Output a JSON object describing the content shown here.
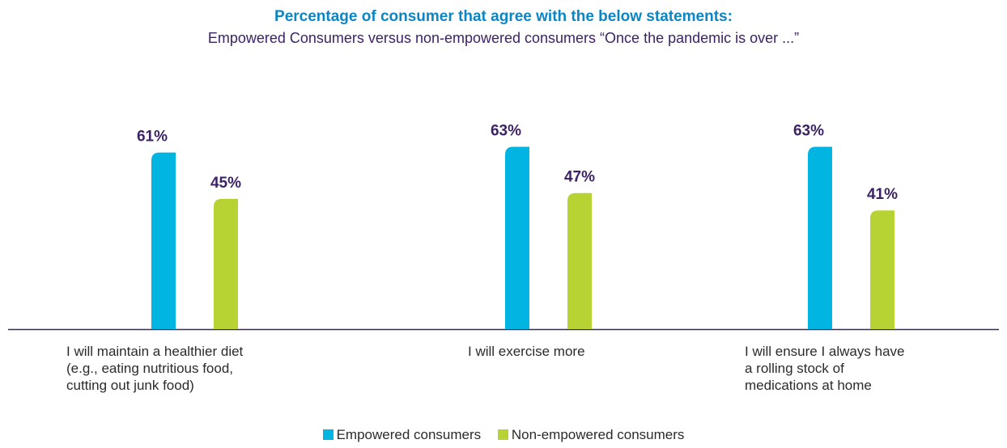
{
  "chart_data": {
    "type": "bar",
    "title": "Percentage of consumer that agree with the below statements:",
    "subtitle": "Empowered Consumers versus non-empowered consumers “Once the pandemic is over ...”",
    "categories": [
      [
        "I will maintain a healthier diet",
        "(e.g., eating nutritious food,",
        "cutting out junk food)"
      ],
      [
        "I will exercise more"
      ],
      [
        "I will ensure I always have",
        "a rolling stock of",
        "medications at home"
      ]
    ],
    "series": [
      {
        "name": "Empowered consumers",
        "values": [
          61,
          63,
          63
        ],
        "labels": [
          "61%",
          "63%",
          "63%"
        ],
        "color": "#00b5e2"
      },
      {
        "name": "Non-empowered consumers",
        "values": [
          45,
          47,
          41
        ],
        "labels": [
          "45%",
          "47%",
          "41%"
        ],
        "color": "#b7d333"
      }
    ],
    "ylim": [
      0,
      80
    ],
    "grid": false,
    "legend": "bottom-center",
    "axis_color": "#3d2266",
    "data_label_color": "#3d2266"
  }
}
